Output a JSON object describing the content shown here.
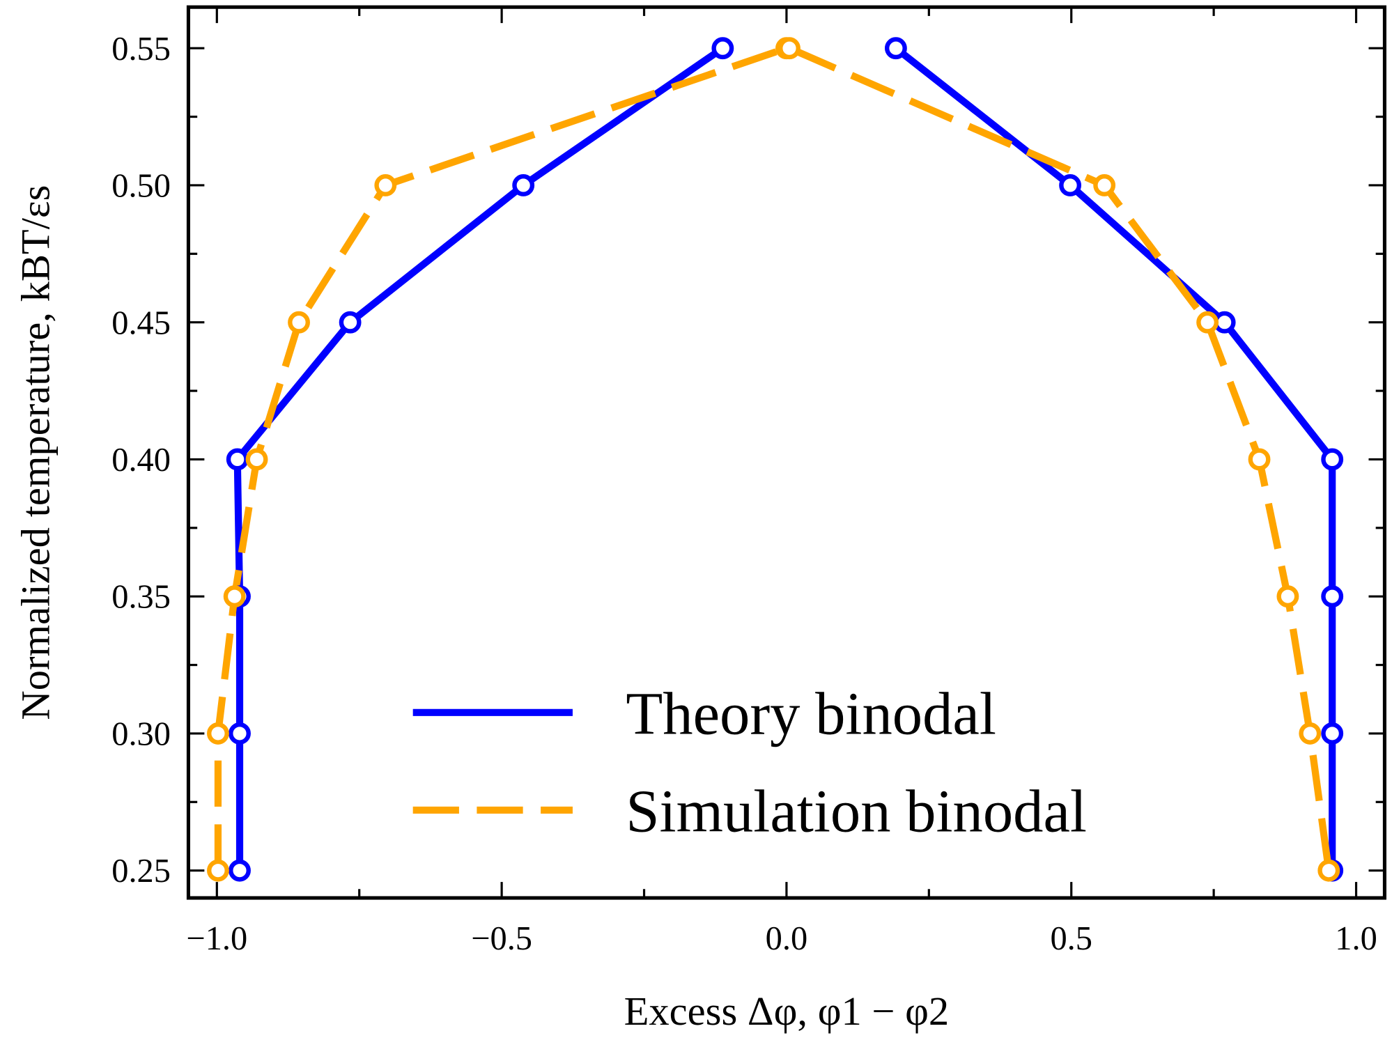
{
  "chart_data": {
    "type": "line",
    "xlabel": "Excess Δφ, φ1 − φ2",
    "ylabel": "Normalized temperature, kBT/εs",
    "xlim": [
      -1.05,
      1.05
    ],
    "ylim": [
      0.24,
      0.565
    ],
    "xticks": [
      -1.0,
      -0.5,
      0.0,
      0.5,
      1.0
    ],
    "xtick_labels": [
      "−1.0",
      "−0.5",
      "0.0",
      "0.5",
      "1.0"
    ],
    "yticks": [
      0.25,
      0.3,
      0.35,
      0.4,
      0.45,
      0.5,
      0.55
    ],
    "ytick_labels": [
      "0.25",
      "0.30",
      "0.35",
      "0.40",
      "0.45",
      "0.50",
      "0.55"
    ],
    "grid": false,
    "legend_position": "lower-center",
    "series": [
      {
        "name": "Theory binodal",
        "color": "#0000ff",
        "style": "solid",
        "segments": [
          {
            "x": [
              -0.96,
              -0.96,
              -0.96,
              -0.964,
              -0.766,
              -0.462,
              -0.112
            ],
            "y": [
              0.25,
              0.3,
              0.35,
              0.4,
              0.45,
              0.5,
              0.55
            ]
          },
          {
            "x": [
              0.192,
              0.498,
              0.769,
              0.958,
              0.958,
              0.958,
              0.958
            ],
            "y": [
              0.55,
              0.5,
              0.45,
              0.4,
              0.35,
              0.3,
              0.25
            ]
          }
        ]
      },
      {
        "name": "Simulation binodal",
        "color": "#ffa500",
        "style": "dashed",
        "segments": [
          {
            "x": [
              -0.998,
              -0.998,
              -0.969,
              -0.93,
              -0.856,
              -0.704,
              0.0,
              0.005,
              0.558,
              0.739,
              0.83,
              0.88,
              0.919,
              0.952
            ],
            "y": [
              0.25,
              0.3,
              0.35,
              0.4,
              0.45,
              0.5,
              0.55,
              0.55,
              0.5,
              0.45,
              0.4,
              0.35,
              0.3,
              0.25
            ]
          }
        ]
      }
    ]
  }
}
